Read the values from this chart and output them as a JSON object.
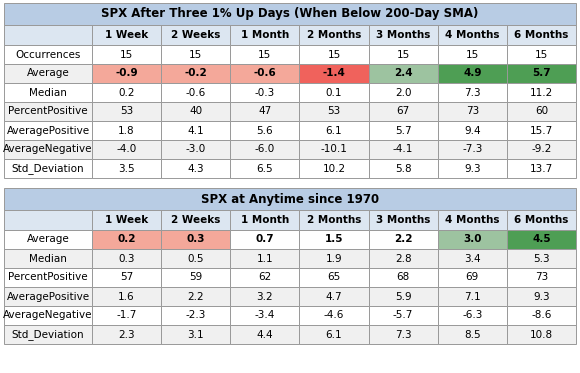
{
  "table1_title": "SPX After Three 1% Up Days (When Below 200-Day SMA)",
  "table2_title": "SPX at Anytime since 1970",
  "columns": [
    "",
    "1 Week",
    "2 Weeks",
    "1 Month",
    "2 Months",
    "3 Months",
    "4 Months",
    "6 Months"
  ],
  "table1_rows": [
    [
      "Occurrences",
      "15",
      "15",
      "15",
      "15",
      "15",
      "15",
      "15"
    ],
    [
      "Average",
      "-0.9",
      "-0.2",
      "-0.6",
      "-1.4",
      "2.4",
      "4.9",
      "5.7"
    ],
    [
      "Median",
      "0.2",
      "-0.6",
      "-0.3",
      "0.1",
      "2.0",
      "7.3",
      "11.2"
    ],
    [
      "PercentPositive",
      "53",
      "40",
      "47",
      "53",
      "67",
      "73",
      "60"
    ],
    [
      "AveragePositive",
      "1.8",
      "4.1",
      "5.6",
      "6.1",
      "5.7",
      "9.4",
      "15.7"
    ],
    [
      "AverageNegative",
      "-4.0",
      "-3.0",
      "-6.0",
      "-10.1",
      "-4.1",
      "-7.3",
      "-9.2"
    ],
    [
      "Std_Deviation",
      "3.5",
      "4.3",
      "6.5",
      "10.2",
      "5.8",
      "9.3",
      "13.7"
    ]
  ],
  "table2_rows": [
    [
      "Average",
      "0.2",
      "0.3",
      "0.7",
      "1.5",
      "2.2",
      "3.0",
      "4.5"
    ],
    [
      "Median",
      "0.3",
      "0.5",
      "1.1",
      "1.9",
      "2.8",
      "3.4",
      "5.3"
    ],
    [
      "PercentPositive",
      "57",
      "59",
      "62",
      "65",
      "68",
      "69",
      "73"
    ],
    [
      "AveragePositive",
      "1.6",
      "2.2",
      "3.2",
      "4.7",
      "5.9",
      "7.1",
      "9.3"
    ],
    [
      "AverageNegative",
      "-1.7",
      "-2.3",
      "-3.4",
      "-4.6",
      "-5.7",
      "-6.3",
      "-8.6"
    ],
    [
      "Std_Deviation",
      "2.3",
      "3.1",
      "4.4",
      "6.1",
      "7.3",
      "8.5",
      "10.8"
    ]
  ],
  "header_bg": "#b8cce4",
  "header_subrow_bg": "#dce6f1",
  "row_bg_white": "#ffffff",
  "row_bg_light": "#f0f0f0",
  "red_light": "#f4a89a",
  "red_strong": "#f0625c",
  "green_light": "#9dc3a0",
  "green_strong": "#4e9e54",
  "title_fontsize": 8.5,
  "cell_fontsize": 7.5,
  "header_fontsize": 7.5
}
